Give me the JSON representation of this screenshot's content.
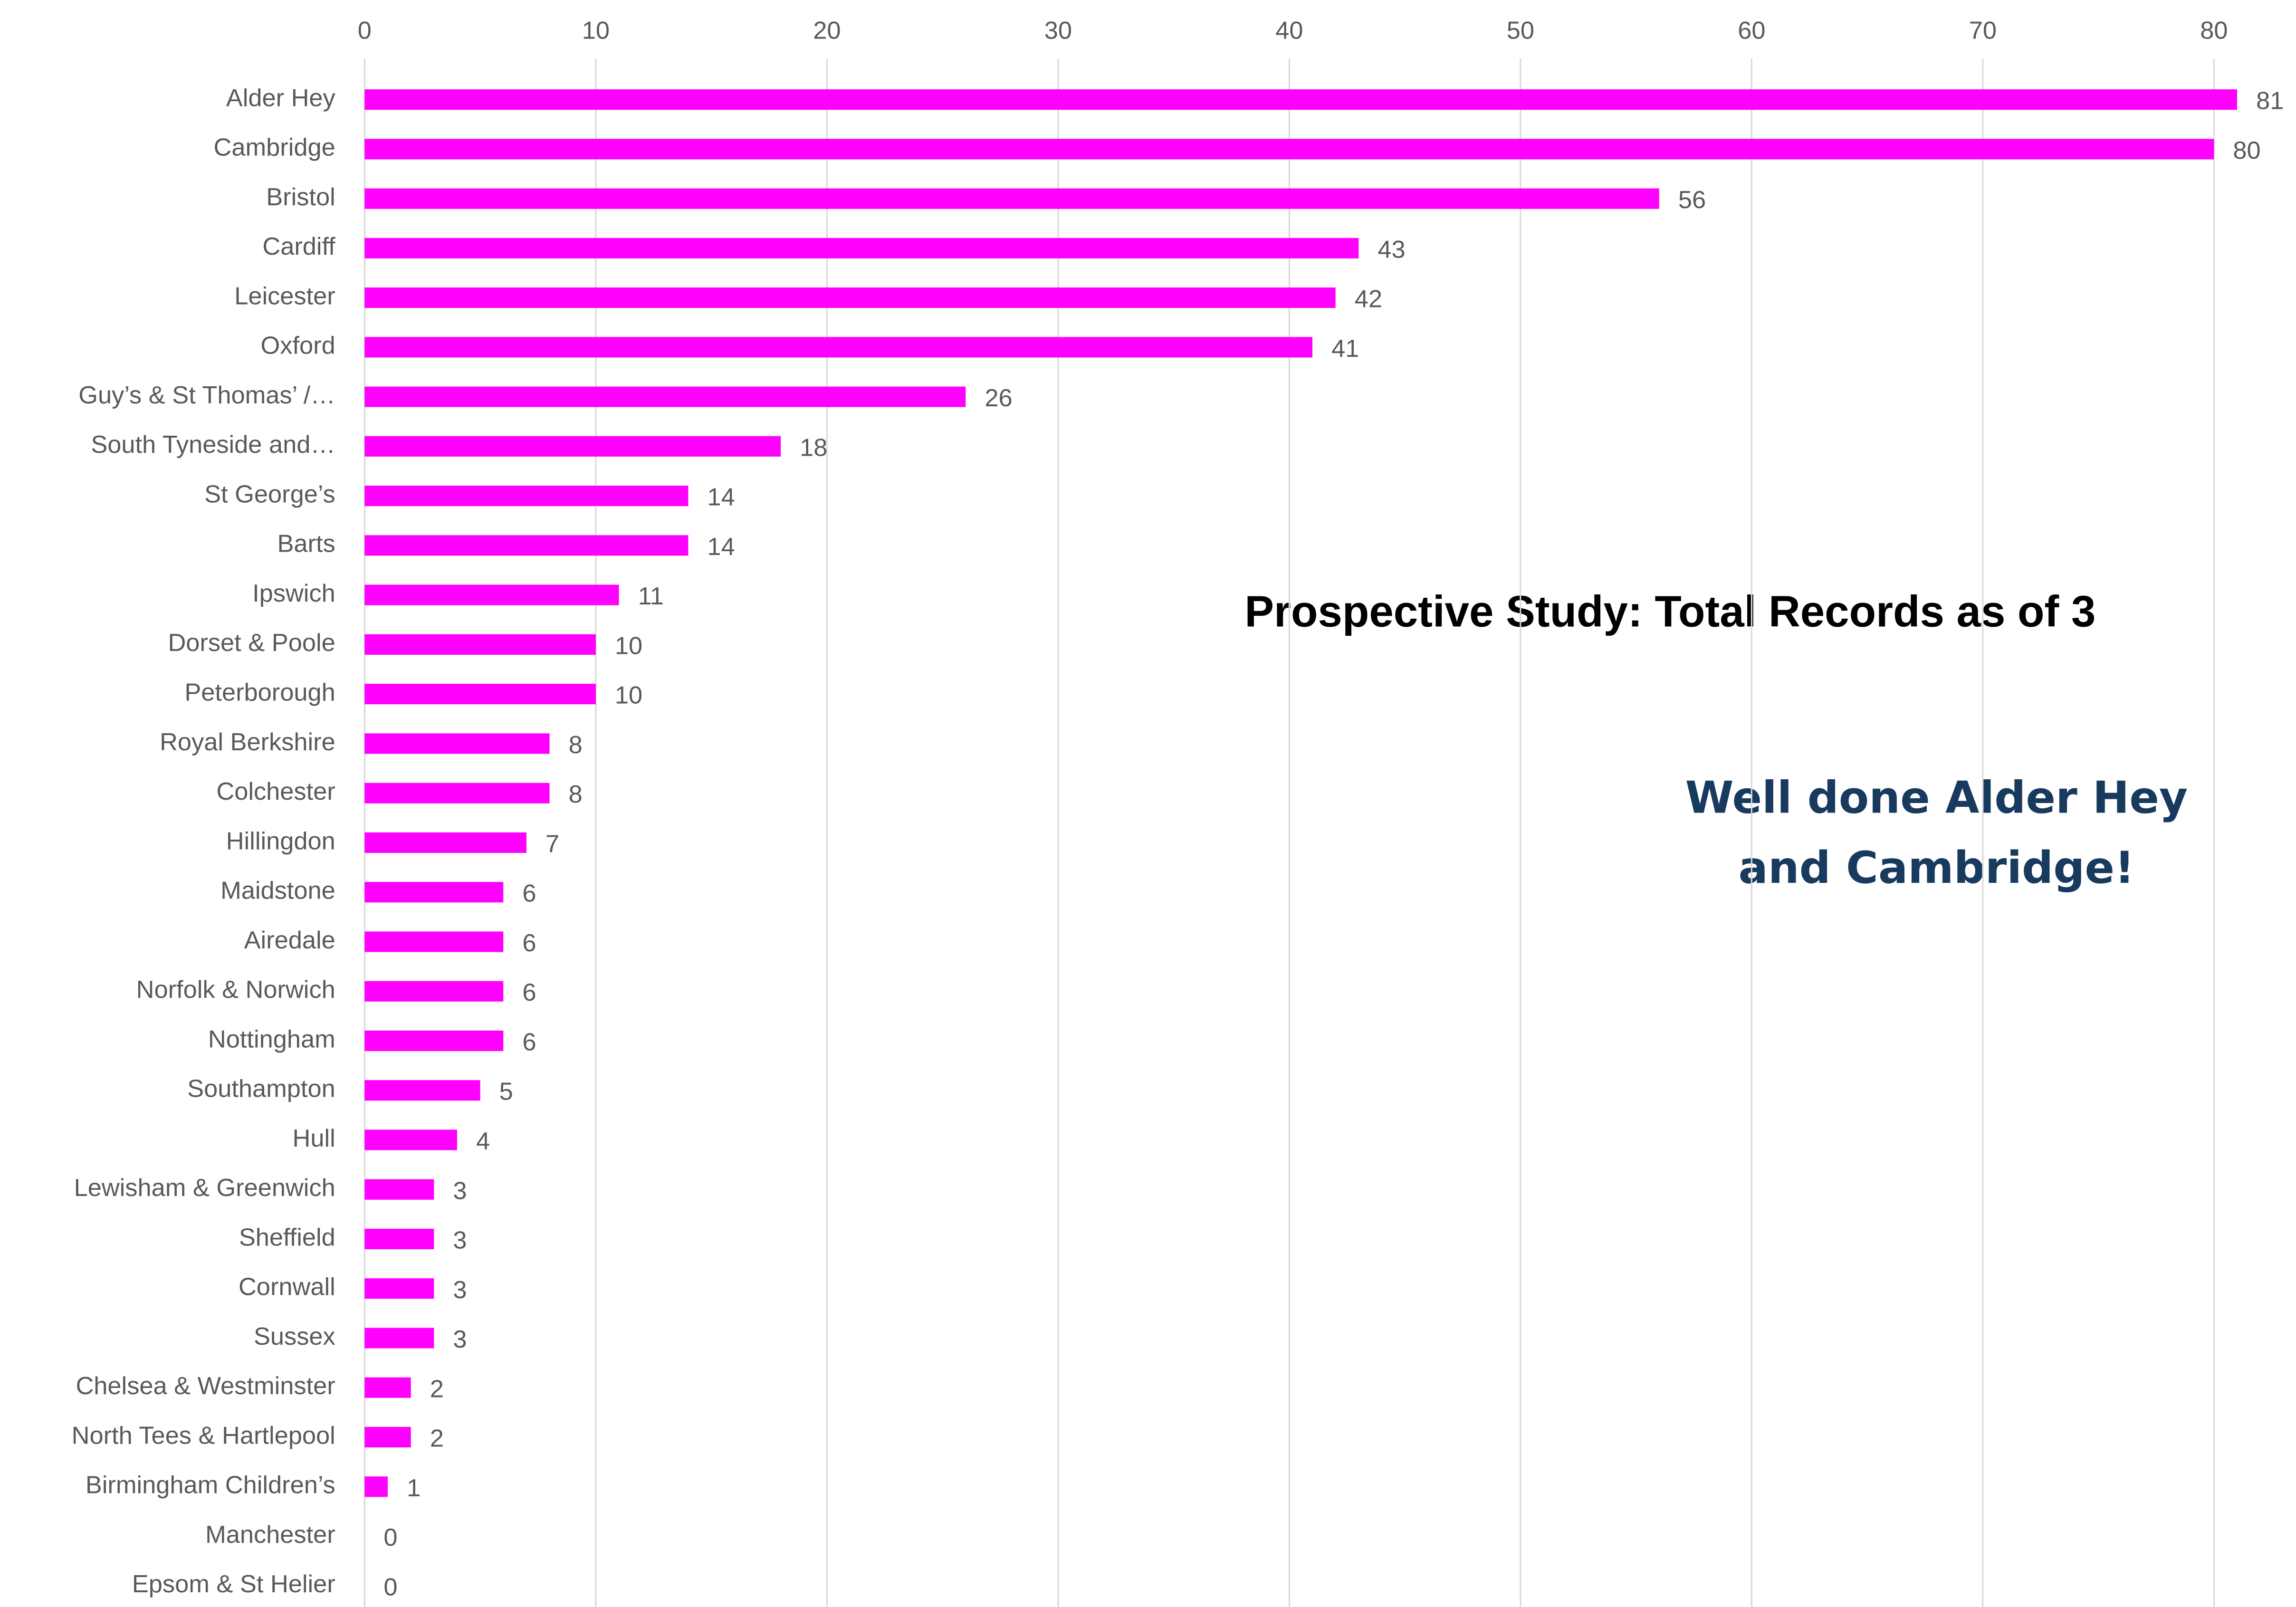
{
  "chart_data": {
    "type": "bar",
    "orientation": "horizontal",
    "title": "Prospective Study: Total Records as of 3",
    "annotation": "Well done Alder Hey and Cambridge!",
    "categories": [
      "Alder Hey",
      "Cambridge",
      "Bristol",
      "Cardiff",
      "Leicester",
      "Oxford",
      "Guy’s & St Thomas’ /…",
      "South Tyneside and…",
      "St George’s",
      "Barts",
      "Ipswich",
      "Dorset & Poole",
      "Peterborough",
      "Royal Berkshire",
      "Colchester",
      "Hillingdon",
      "Maidstone",
      "Airedale",
      "Norfolk & Norwich",
      "Nottingham",
      "Southampton",
      "Hull",
      "Lewisham & Greenwich",
      "Sheffield",
      "Cornwall",
      "Sussex",
      "Chelsea & Westminster",
      "North Tees & Hartlepool",
      "Birmingham Children’s",
      "Manchester",
      "Epsom & St Helier"
    ],
    "values": [
      81,
      80,
      56,
      43,
      42,
      41,
      26,
      18,
      14,
      14,
      11,
      10,
      10,
      8,
      8,
      7,
      6,
      6,
      6,
      6,
      5,
      4,
      3,
      3,
      3,
      3,
      2,
      2,
      1,
      0,
      0
    ],
    "color": "#ff00ff",
    "xlim": [
      0,
      80
    ],
    "xticks": [
      0,
      10,
      20,
      30,
      40,
      50,
      60,
      70,
      80
    ],
    "grid": true
  }
}
